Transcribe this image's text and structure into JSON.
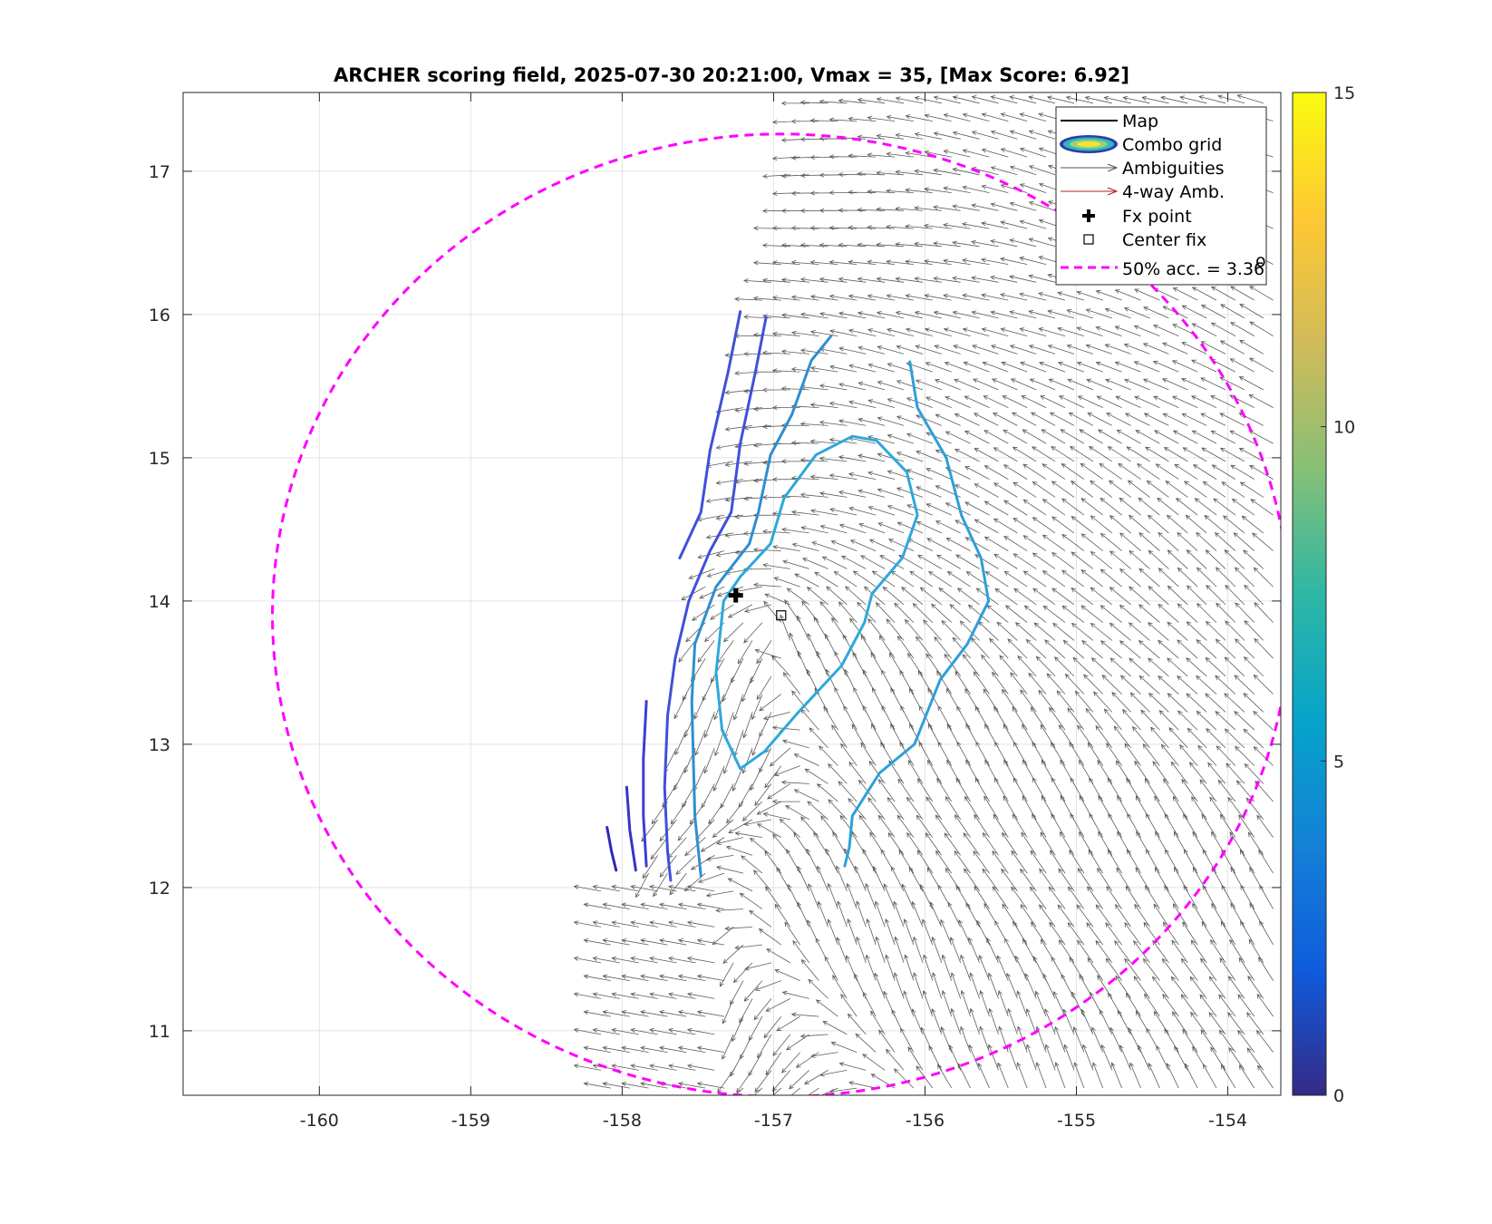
{
  "chart_data": {
    "type": "scatter",
    "title": "ARCHER scoring field, 2025-07-30 20:21:00, Vmax = 35, [Max Score: 6.92]",
    "xlabel": "",
    "ylabel": "",
    "xlim": [
      -160.9,
      -153.65
    ],
    "ylim": [
      10.55,
      17.55
    ],
    "x_ticks": [
      -160,
      -159,
      -158,
      -157,
      -156,
      -155,
      -154
    ],
    "x_tick_labels": [
      "-160",
      "-159",
      "-158",
      "-157",
      "-156",
      "-155",
      "-154"
    ],
    "y_ticks": [
      11,
      12,
      13,
      14,
      15,
      16,
      17
    ],
    "y_tick_labels": [
      "11",
      "12",
      "13",
      "14",
      "15",
      "16",
      "17"
    ],
    "grid": true,
    "colorbar": {
      "min": 0,
      "max": 15,
      "ticks": [
        "0",
        "5",
        "10",
        "15"
      ]
    },
    "legend": {
      "placement": "top-right",
      "entries": [
        {
          "label": "Map",
          "marker": "line",
          "color": "#000000"
        },
        {
          "label": "Combo grid",
          "marker": "contour",
          "color": "#2c3e9e"
        },
        {
          "label": "Ambiguities",
          "marker": "arrow",
          "color": "#555555"
        },
        {
          "label": "4-way Amb.",
          "marker": "arrow",
          "color": "#b02020"
        },
        {
          "label": "Fx point",
          "marker": "plus",
          "color": "#000000"
        },
        {
          "label": "Center fix",
          "marker": "square",
          "color": "#000000"
        },
        {
          "label": "50% acc. = 3.36",
          "superscript": "o",
          "marker": "dashed",
          "color": "#ff00ff"
        }
      ]
    },
    "fx_point": {
      "lon": -157.25,
      "lat": 14.04
    },
    "center_fix": {
      "lon": -156.95,
      "lat": 13.9
    },
    "accuracy_circle": {
      "center_lon": -156.95,
      "center_lat": 13.9,
      "radius_deg": 3.36,
      "color": "#ff00ff"
    },
    "contours": [
      {
        "level": 2.5,
        "color": "#4050d8",
        "points": [
          [
            -157.22,
            16.02
          ],
          [
            -157.3,
            15.6
          ],
          [
            -157.42,
            15.05
          ],
          [
            -157.48,
            14.62
          ],
          [
            -157.62,
            14.3
          ]
        ]
      },
      {
        "level": 2.5,
        "color": "#4050d8",
        "points": [
          [
            -157.05,
            15.98
          ],
          [
            -157.12,
            15.6
          ],
          [
            -157.22,
            15.1
          ],
          [
            -157.28,
            14.62
          ],
          [
            -157.42,
            14.35
          ],
          [
            -157.56,
            14.0
          ],
          [
            -157.65,
            13.6
          ],
          [
            -157.7,
            13.2
          ],
          [
            -157.72,
            12.7
          ],
          [
            -157.7,
            12.25
          ],
          [
            -157.68,
            12.05
          ]
        ]
      },
      {
        "level": 2.0,
        "color": "#3a40cf",
        "points": [
          [
            -157.84,
            13.3
          ],
          [
            -157.86,
            12.9
          ],
          [
            -157.86,
            12.5
          ],
          [
            -157.84,
            12.15
          ]
        ]
      },
      {
        "level": 1.5,
        "color": "#3535c5",
        "points": [
          [
            -157.97,
            12.7
          ],
          [
            -157.95,
            12.4
          ],
          [
            -157.91,
            12.12
          ]
        ]
      },
      {
        "level": 1.0,
        "color": "#3028b8",
        "points": [
          [
            -158.1,
            12.42
          ],
          [
            -158.07,
            12.25
          ],
          [
            -158.04,
            12.12
          ]
        ]
      },
      {
        "level": 5.0,
        "color": "#2e8fd0",
        "points": [
          [
            -156.62,
            15.85
          ],
          [
            -156.75,
            15.68
          ],
          [
            -156.88,
            15.3
          ],
          [
            -157.02,
            15.02
          ],
          [
            -157.1,
            14.62
          ],
          [
            -157.16,
            14.4
          ],
          [
            -157.38,
            14.1
          ],
          [
            -157.52,
            13.7
          ],
          [
            -157.54,
            13.3
          ],
          [
            -157.53,
            12.9
          ],
          [
            -157.52,
            12.5
          ],
          [
            -157.48,
            12.08
          ]
        ]
      },
      {
        "level": 6.0,
        "color": "#2ca0d8",
        "points": [
          [
            -156.1,
            15.67
          ],
          [
            -156.05,
            15.35
          ],
          [
            -155.86,
            15.0
          ],
          [
            -155.76,
            14.6
          ],
          [
            -155.63,
            14.3
          ],
          [
            -155.58,
            14.0
          ],
          [
            -155.72,
            13.7
          ],
          [
            -155.9,
            13.45
          ],
          [
            -156.07,
            13.0
          ],
          [
            -156.3,
            12.8
          ],
          [
            -156.48,
            12.5
          ],
          [
            -156.5,
            12.28
          ],
          [
            -156.53,
            12.15
          ]
        ]
      },
      {
        "level": 6.5,
        "color": "#2ea8da",
        "points": [
          [
            -156.48,
            15.15
          ],
          [
            -156.72,
            15.02
          ],
          [
            -156.93,
            14.72
          ],
          [
            -157.02,
            14.4
          ],
          [
            -157.22,
            14.17
          ],
          [
            -157.33,
            14.0
          ],
          [
            -157.38,
            13.5
          ],
          [
            -157.34,
            13.1
          ],
          [
            -157.22,
            12.83
          ],
          [
            -157.06,
            12.95
          ],
          [
            -156.84,
            13.22
          ],
          [
            -156.55,
            13.55
          ],
          [
            -156.4,
            13.85
          ],
          [
            -156.35,
            14.05
          ],
          [
            -156.15,
            14.3
          ],
          [
            -156.05,
            14.6
          ],
          [
            -156.12,
            14.9
          ],
          [
            -156.32,
            15.12
          ],
          [
            -156.48,
            15.15
          ]
        ]
      }
    ]
  }
}
